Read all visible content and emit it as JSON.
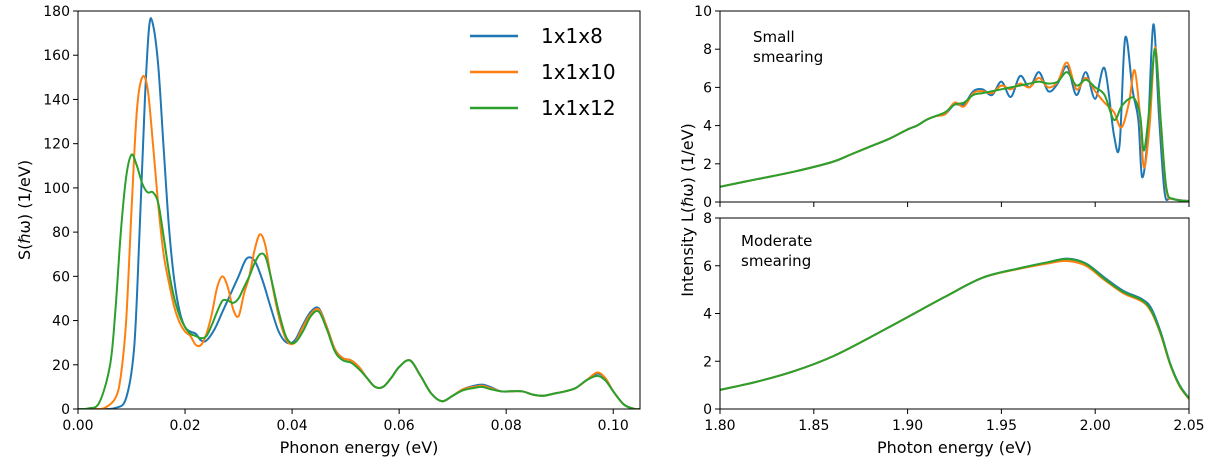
{
  "colors": {
    "series_1": "#1f77b4",
    "series_2": "#ff7f0e",
    "series_3": "#2ca02c"
  },
  "chart_data": [
    {
      "type": "line",
      "title": "",
      "xlabel": "Phonon energy (eV)",
      "ylabel": "S(ℏω) (1/eV)",
      "xlim": [
        0,
        0.105
      ],
      "ylim": [
        0,
        180
      ],
      "xticks": [
        0,
        0.02,
        0.04,
        0.06,
        0.08,
        0.1
      ],
      "xtick_labels": [
        "0.00",
        "0.02",
        "0.04",
        "0.06",
        "0.08",
        "0.10"
      ],
      "yticks": [
        0,
        20,
        40,
        60,
        80,
        100,
        120,
        140,
        160,
        180
      ],
      "ytick_labels": [
        "0",
        "20",
        "40",
        "60",
        "80",
        "100",
        "120",
        "140",
        "160",
        "180"
      ],
      "grid": false,
      "legend": "top-right",
      "series": [
        {
          "name": "1x1x8",
          "color": "#1f77b4",
          "x": [
            0,
            0.004,
            0.007,
            0.009,
            0.0105,
            0.0115,
            0.0125,
            0.0133,
            0.014,
            0.015,
            0.016,
            0.017,
            0.018,
            0.019,
            0.02,
            0.021,
            0.022,
            0.023,
            0.024,
            0.0255,
            0.027,
            0.0285,
            0.03,
            0.0315,
            0.033,
            0.0345,
            0.036,
            0.0375,
            0.039,
            0.0405,
            0.042,
            0.0435,
            0.045,
            0.0465,
            0.048,
            0.0495,
            0.051,
            0.0525,
            0.054,
            0.0555,
            0.057,
            0.0585,
            0.06,
            0.062,
            0.064,
            0.066,
            0.068,
            0.07,
            0.072,
            0.074,
            0.0755,
            0.077,
            0.079,
            0.081,
            0.083,
            0.085,
            0.087,
            0.089,
            0.091,
            0.093,
            0.095,
            0.097,
            0.0985,
            0.1,
            0.102,
            0.104,
            0.105
          ],
          "y": [
            0,
            0,
            0.5,
            5,
            28,
            80,
            140,
            173,
            174,
            155,
            118,
            82,
            58,
            44,
            37,
            35,
            34,
            31,
            31,
            36,
            44,
            52,
            60,
            68,
            67,
            58,
            46,
            35,
            30,
            31,
            38,
            44,
            45.5,
            37,
            27,
            23,
            22,
            19,
            14,
            10,
            10,
            14,
            19,
            22,
            15,
            7,
            3.5,
            6,
            9,
            10.5,
            11,
            10,
            8,
            8,
            8,
            6.5,
            6,
            7,
            8,
            9.5,
            13,
            16,
            14,
            8,
            2,
            0,
            0
          ]
        },
        {
          "name": "1x1x10",
          "color": "#ff7f0e",
          "x": [
            0,
            0.003,
            0.005,
            0.007,
            0.008,
            0.009,
            0.01,
            0.011,
            0.012,
            0.013,
            0.014,
            0.015,
            0.016,
            0.017,
            0.018,
            0.019,
            0.02,
            0.021,
            0.022,
            0.023,
            0.024,
            0.025,
            0.026,
            0.027,
            0.028,
            0.029,
            0.03,
            0.031,
            0.032,
            0.033,
            0.034,
            0.035,
            0.036,
            0.0375,
            0.039,
            0.0405,
            0.042,
            0.0435,
            0.045,
            0.0465,
            0.048,
            0.0495,
            0.051,
            0.0525,
            0.054,
            0.0555,
            0.057,
            0.0585,
            0.06,
            0.062,
            0.064,
            0.066,
            0.068,
            0.07,
            0.072,
            0.074,
            0.0755,
            0.077,
            0.079,
            0.081,
            0.083,
            0.085,
            0.087,
            0.089,
            0.091,
            0.093,
            0.095,
            0.097,
            0.0985,
            0.1,
            0.102,
            0.104,
            0.105
          ],
          "y": [
            0,
            0,
            0.5,
            5,
            15,
            40,
            90,
            135,
            150,
            145,
            120,
            92,
            70,
            57,
            46,
            39,
            35,
            33,
            29,
            29,
            34,
            43,
            55,
            60,
            55,
            45,
            42,
            52,
            60,
            72,
            79,
            74,
            60,
            42,
            31,
            30,
            37,
            43,
            45,
            37,
            27,
            23,
            22,
            19,
            14,
            10,
            10,
            14,
            19,
            22,
            15,
            7,
            3.5,
            6,
            9,
            10,
            10.5,
            9.5,
            8,
            8,
            8,
            6.5,
            6,
            7,
            8,
            9.5,
            13,
            16.5,
            14,
            8,
            2,
            0,
            0
          ]
        },
        {
          "name": "1x1x12",
          "color": "#2ca02c",
          "x": [
            0,
            0.002,
            0.004,
            0.006,
            0.007,
            0.008,
            0.009,
            0.01,
            0.011,
            0.012,
            0.013,
            0.014,
            0.015,
            0.016,
            0.017,
            0.018,
            0.019,
            0.02,
            0.021,
            0.022,
            0.023,
            0.024,
            0.025,
            0.026,
            0.027,
            0.028,
            0.029,
            0.03,
            0.031,
            0.032,
            0.033,
            0.034,
            0.035,
            0.036,
            0.0375,
            0.039,
            0.0405,
            0.042,
            0.0435,
            0.045,
            0.0465,
            0.048,
            0.0495,
            0.051,
            0.0525,
            0.054,
            0.0555,
            0.057,
            0.0585,
            0.06,
            0.062,
            0.064,
            0.066,
            0.068,
            0.07,
            0.072,
            0.074,
            0.0755,
            0.077,
            0.079,
            0.081,
            0.083,
            0.085,
            0.087,
            0.089,
            0.091,
            0.093,
            0.095,
            0.097,
            0.0985,
            0.1,
            0.102,
            0.104,
            0.105
          ],
          "y": [
            0,
            0.3,
            3,
            20,
            45,
            80,
            105,
            115,
            110,
            102,
            98,
            98,
            93,
            78,
            62,
            50,
            42,
            37,
            34,
            33,
            32,
            33,
            38,
            44,
            49,
            49,
            48,
            50,
            55,
            60,
            66,
            70,
            69,
            60,
            44,
            32,
            30,
            35,
            42,
            44,
            36,
            26,
            22,
            21,
            18,
            14,
            10,
            10,
            14,
            19,
            22,
            15,
            7,
            3.5,
            6,
            8.5,
            9.5,
            10,
            9,
            8,
            8,
            8,
            6.5,
            6,
            7,
            8,
            9.5,
            13,
            15,
            13,
            8,
            2,
            0,
            0
          ]
        }
      ]
    },
    {
      "type": "line",
      "title": "",
      "annotation": "Small\nsmearing",
      "xlabel": "",
      "ylabel": "",
      "xlim": [
        1.8,
        2.05
      ],
      "ylim": [
        0,
        10
      ],
      "xticks": [
        1.8,
        1.85,
        1.9,
        1.95,
        2.0,
        2.05
      ],
      "xtick_labels": [
        "",
        "",
        "",
        "",
        "",
        ""
      ],
      "yticks": [
        0,
        2,
        4,
        6,
        8,
        10
      ],
      "ytick_labels": [
        "0",
        "2",
        "4",
        "6",
        "8",
        "10"
      ],
      "grid": false,
      "series": [
        {
          "name": "1x1x8",
          "color": "#1f77b4",
          "x": [
            1.8,
            1.82,
            1.84,
            1.86,
            1.87,
            1.88,
            1.89,
            1.9,
            1.905,
            1.91,
            1.915,
            1.92,
            1.925,
            1.93,
            1.935,
            1.94,
            1.945,
            1.95,
            1.955,
            1.96,
            1.965,
            1.97,
            1.975,
            1.98,
            1.985,
            1.99,
            1.995,
            2.0,
            2.005,
            2.01,
            2.013,
            2.016,
            2.02,
            2.023,
            2.025,
            2.028,
            2.031,
            2.034,
            2.037,
            2.04,
            2.045,
            2.05
          ],
          "y": [
            0.8,
            1.2,
            1.6,
            2.1,
            2.5,
            2.9,
            3.3,
            3.8,
            4.0,
            4.3,
            4.5,
            4.6,
            5.1,
            5.1,
            5.8,
            5.9,
            5.6,
            6.3,
            5.5,
            6.6,
            6.0,
            6.8,
            5.8,
            6.2,
            7.1,
            5.6,
            6.8,
            5.4,
            7.0,
            3.5,
            3.0,
            8.6,
            5.8,
            4.3,
            1.3,
            3.5,
            9.3,
            4.5,
            0.5,
            0.2,
            0.1,
            0.05
          ]
        },
        {
          "name": "1x1x10",
          "color": "#ff7f0e",
          "x": [
            1.8,
            1.82,
            1.84,
            1.86,
            1.87,
            1.88,
            1.89,
            1.9,
            1.905,
            1.91,
            1.915,
            1.92,
            1.925,
            1.93,
            1.935,
            1.94,
            1.945,
            1.95,
            1.955,
            1.96,
            1.965,
            1.97,
            1.975,
            1.98,
            1.985,
            1.99,
            1.995,
            2.0,
            2.005,
            2.01,
            2.014,
            2.018,
            2.021,
            2.024,
            2.026,
            2.029,
            2.032,
            2.035,
            2.038,
            2.042,
            2.05
          ],
          "y": [
            0.8,
            1.2,
            1.6,
            2.1,
            2.5,
            2.9,
            3.3,
            3.8,
            4.0,
            4.3,
            4.5,
            4.6,
            5.2,
            5.0,
            5.7,
            5.8,
            5.7,
            6.1,
            5.9,
            6.2,
            6.0,
            6.5,
            6.0,
            6.3,
            7.3,
            5.9,
            6.5,
            5.8,
            5.2,
            4.7,
            3.9,
            5.2,
            6.9,
            4.4,
            1.8,
            4.0,
            8.1,
            4.0,
            0.6,
            0.15,
            0.05
          ]
        },
        {
          "name": "1x1x12",
          "color": "#2ca02c",
          "x": [
            1.8,
            1.82,
            1.84,
            1.86,
            1.87,
            1.88,
            1.89,
            1.9,
            1.905,
            1.91,
            1.915,
            1.92,
            1.925,
            1.93,
            1.935,
            1.94,
            1.945,
            1.95,
            1.955,
            1.96,
            1.965,
            1.97,
            1.975,
            1.98,
            1.985,
            1.99,
            1.995,
            2.0,
            2.005,
            2.01,
            2.014,
            2.018,
            2.021,
            2.024,
            2.026,
            2.029,
            2.032,
            2.035,
            2.038,
            2.042,
            2.05
          ],
          "y": [
            0.8,
            1.2,
            1.6,
            2.1,
            2.5,
            2.9,
            3.3,
            3.8,
            4.0,
            4.3,
            4.5,
            4.7,
            5.1,
            5.2,
            5.6,
            5.7,
            5.8,
            5.9,
            6.0,
            6.1,
            6.2,
            6.3,
            6.2,
            6.3,
            6.8,
            6.1,
            6.4,
            6.0,
            5.6,
            4.3,
            5.0,
            5.4,
            5.4,
            4.5,
            2.7,
            5.0,
            8.0,
            4.2,
            0.7,
            0.15,
            0.05
          ]
        }
      ]
    },
    {
      "type": "line",
      "title": "",
      "annotation": "Moderate\nsmearing",
      "xlabel": "Photon energy (eV)",
      "ylabel": "Intensity L(ℏω) (1/eV)",
      "xlim": [
        1.8,
        2.05
      ],
      "ylim": [
        0,
        8
      ],
      "xticks": [
        1.8,
        1.85,
        1.9,
        1.95,
        2.0,
        2.05
      ],
      "xtick_labels": [
        "1.80",
        "1.85",
        "1.90",
        "1.95",
        "2.00",
        "2.05"
      ],
      "yticks": [
        0,
        2,
        4,
        6,
        8
      ],
      "ytick_labels": [
        "0",
        "2",
        "4",
        "6",
        "8"
      ],
      "grid": false,
      "series": [
        {
          "name": "1x1x8",
          "color": "#1f77b4",
          "x": [
            1.8,
            1.82,
            1.84,
            1.86,
            1.88,
            1.9,
            1.92,
            1.94,
            1.96,
            1.975,
            1.985,
            1.995,
            2.005,
            2.015,
            2.025,
            2.03,
            2.035,
            2.04,
            2.045,
            2.05
          ],
          "y": [
            0.8,
            1.15,
            1.6,
            2.2,
            3.0,
            3.85,
            4.7,
            5.5,
            5.9,
            6.15,
            6.3,
            6.1,
            5.5,
            4.95,
            4.6,
            4.2,
            3.2,
            1.9,
            1.0,
            0.45
          ]
        },
        {
          "name": "1x1x10",
          "color": "#ff7f0e",
          "x": [
            1.8,
            1.82,
            1.84,
            1.86,
            1.88,
            1.9,
            1.92,
            1.94,
            1.96,
            1.975,
            1.985,
            1.995,
            2.005,
            2.015,
            2.025,
            2.03,
            2.035,
            2.04,
            2.045,
            2.05
          ],
          "y": [
            0.8,
            1.15,
            1.6,
            2.2,
            3.0,
            3.85,
            4.7,
            5.5,
            5.88,
            6.1,
            6.2,
            6.0,
            5.4,
            4.85,
            4.5,
            4.05,
            3.1,
            1.85,
            0.95,
            0.42
          ]
        },
        {
          "name": "1x1x12",
          "color": "#2ca02c",
          "x": [
            1.8,
            1.82,
            1.84,
            1.86,
            1.88,
            1.9,
            1.92,
            1.94,
            1.96,
            1.975,
            1.985,
            1.995,
            2.005,
            2.015,
            2.025,
            2.03,
            2.035,
            2.04,
            2.045,
            2.05
          ],
          "y": [
            0.8,
            1.15,
            1.6,
            2.2,
            3.0,
            3.85,
            4.7,
            5.5,
            5.9,
            6.15,
            6.28,
            6.08,
            5.45,
            4.9,
            4.55,
            4.1,
            3.15,
            1.88,
            0.98,
            0.44
          ]
        }
      ]
    }
  ]
}
